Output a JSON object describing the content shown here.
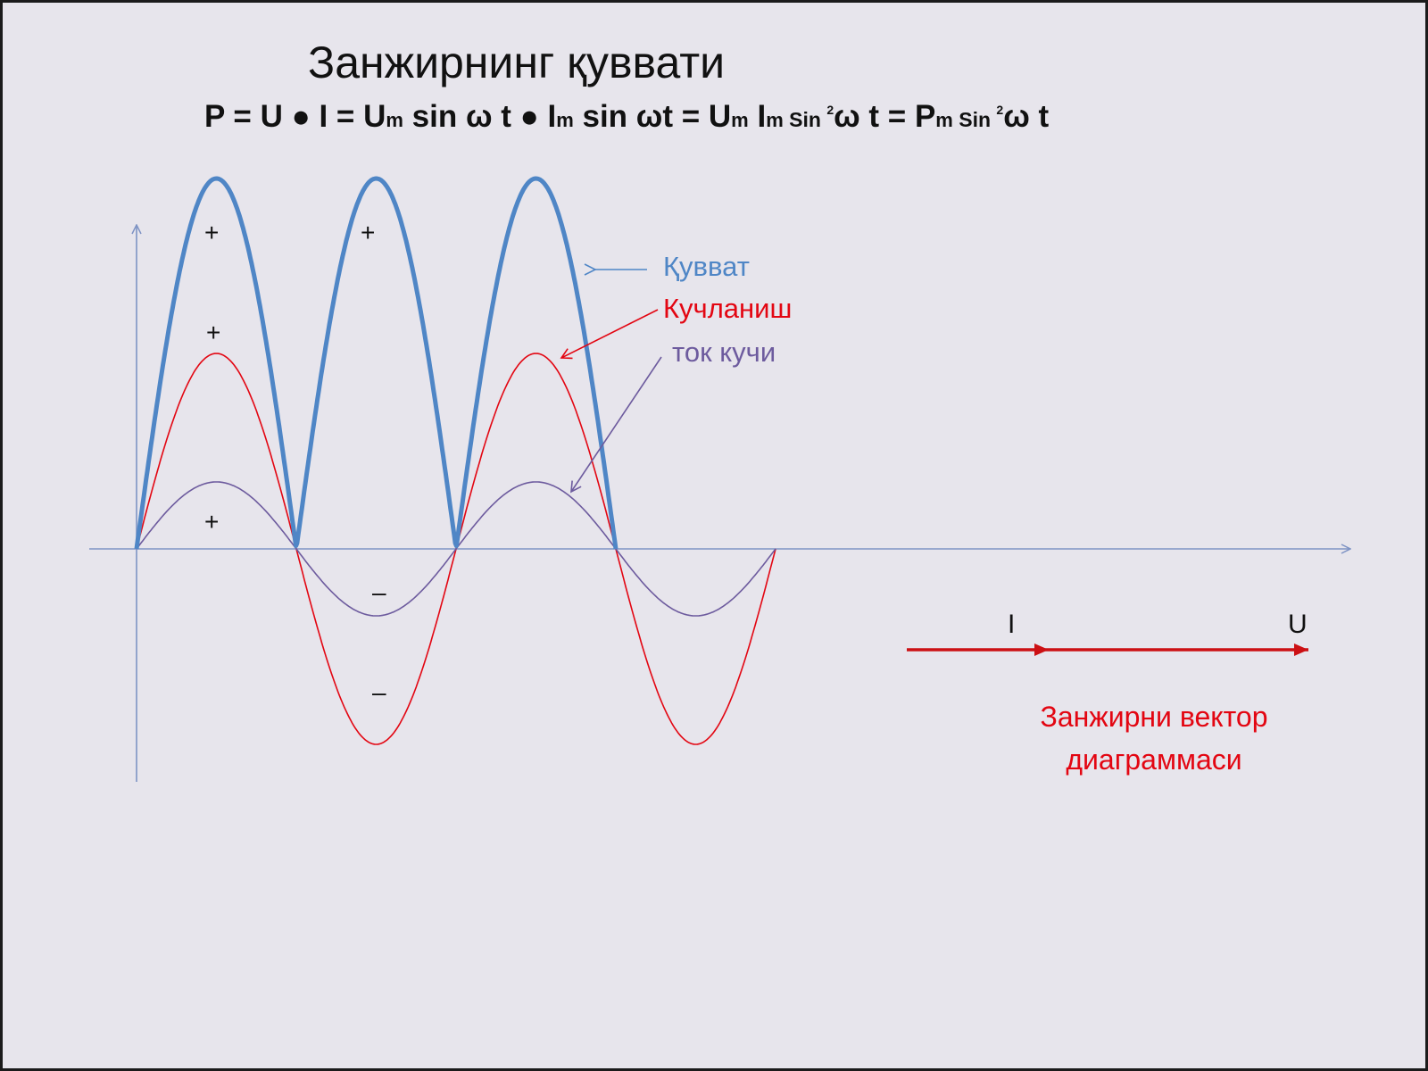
{
  "title": "Занжирнинг қуввати",
  "formula": {
    "p1": "P = U ● I  =  U",
    "m1": "m",
    "p2": " sin ω t ● I",
    "m2": "m",
    "p3": " sin ωt  = U",
    "m3": "m",
    "p4": "  I",
    "m4": "m",
    "sin1": " Sin ",
    "sq1": "2",
    "p5": "ω t = P",
    "m5": "m",
    "sin2": " Sin ",
    "sq2": "2",
    "p6": "ω t"
  },
  "legend": {
    "power": "Қувват",
    "voltage": "Кучланиш",
    "current": "ток кучи"
  },
  "signs": {
    "plus": "+",
    "minus": "–"
  },
  "vector": {
    "i_label": "I",
    "u_label": "U",
    "caption_line1": "Занжирни вектор",
    "caption_line2": "диаграммаси"
  },
  "colors": {
    "power": "#4f86c6",
    "voltage": "#e30612",
    "current": "#6d5b9e",
    "axis": "#7e93c4",
    "vector": "#cc1014"
  }
}
